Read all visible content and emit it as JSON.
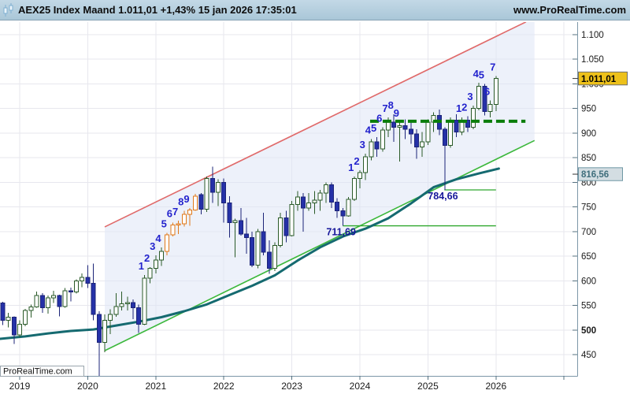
{
  "header": {
    "icon": "candlestick-chart-icon",
    "title": "AEX25 Index Maand 1.011,01 +1,43% 15 jan 2026 17:35:01",
    "website": "www.ProRealTime.com"
  },
  "watermark": "ProRealTime.com",
  "price_axis": {
    "ticks": [
      {
        "value": 1100,
        "label": "1.100"
      },
      {
        "value": 1050,
        "label": "1.050"
      },
      {
        "value": 1000,
        "label": "1.000"
      },
      {
        "value": 950,
        "label": "950"
      },
      {
        "value": 900,
        "label": "900"
      },
      {
        "value": 850,
        "label": "850"
      },
      {
        "value": 800,
        "label": "800"
      },
      {
        "value": 750,
        "label": "750"
      },
      {
        "value": 700,
        "label": "700"
      },
      {
        "value": 650,
        "label": "650"
      },
      {
        "value": 600,
        "label": "600"
      },
      {
        "value": 550,
        "label": "550"
      },
      {
        "value": 500,
        "label": "500",
        "bold": true
      },
      {
        "value": 450,
        "label": "450"
      }
    ],
    "tags": [
      {
        "name": "last-price-tag",
        "text": "1.011,01",
        "value": 1011.01,
        "bg": "#edc11a",
        "border": "#6d6d6d",
        "color": "#000000"
      },
      {
        "name": "ma-value-tag",
        "text": "816,56",
        "value": 816.56,
        "bg": "#d3dde2",
        "border": "#6e97a4",
        "color": "#3f6e7c"
      }
    ]
  },
  "time_axis": {
    "years": [
      "2019",
      "2020",
      "2021",
      "2022",
      "2023",
      "2024",
      "2025",
      "2026"
    ]
  },
  "chart_data": {
    "type": "candlestick",
    "instrument": "AEX25 Index",
    "timeframe": "Maand",
    "last": "1.011,01",
    "change": "+1,43%",
    "timestamp": "15 jan 2026 17:35:01",
    "ylim": [
      450,
      1100
    ],
    "xlim_years": [
      2019,
      2026
    ],
    "grid": true,
    "start_month": "2018-10",
    "candles": [
      [
        "2018-10",
        555,
        557,
        510,
        520,
        "dn"
      ],
      [
        "2018-11",
        520,
        535,
        505,
        526,
        "up"
      ],
      [
        "2018-12",
        526,
        528,
        472,
        490,
        "dn"
      ],
      [
        "2019-01",
        490,
        520,
        485,
        512,
        "up"
      ],
      [
        "2019-02",
        512,
        543,
        508,
        540,
        "up"
      ],
      [
        "2019-03",
        540,
        552,
        525,
        547,
        "up"
      ],
      [
        "2019-04",
        547,
        578,
        545,
        570,
        "up"
      ],
      [
        "2019-05",
        570,
        575,
        535,
        545,
        "dn"
      ],
      [
        "2019-06",
        545,
        570,
        533,
        565,
        "up"
      ],
      [
        "2019-07",
        565,
        580,
        555,
        570,
        "up"
      ],
      [
        "2019-08",
        570,
        572,
        528,
        548,
        "dn"
      ],
      [
        "2019-09",
        548,
        585,
        545,
        580,
        "up"
      ],
      [
        "2019-10",
        580,
        586,
        558,
        577,
        "dn"
      ],
      [
        "2019-11",
        577,
        603,
        574,
        600,
        "up"
      ],
      [
        "2019-12",
        600,
        615,
        587,
        607,
        "up"
      ],
      [
        "2020-01",
        607,
        632,
        585,
        595,
        "dn"
      ],
      [
        "2020-02",
        595,
        635,
        520,
        532,
        "dn"
      ],
      [
        "2020-03",
        532,
        538,
        405,
        475,
        "dn"
      ],
      [
        "2020-04",
        475,
        532,
        455,
        520,
        "up"
      ],
      [
        "2020-05",
        520,
        542,
        492,
        532,
        "up"
      ],
      [
        "2020-06",
        532,
        575,
        527,
        548,
        "up"
      ],
      [
        "2020-07",
        548,
        578,
        540,
        553,
        "up"
      ],
      [
        "2020-08",
        553,
        568,
        540,
        556,
        "up"
      ],
      [
        "2020-09",
        556,
        562,
        522,
        545,
        "dn"
      ],
      [
        "2020-10",
        545,
        552,
        494,
        512,
        "dn"
      ],
      [
        "2020-11",
        512,
        612,
        510,
        605,
        "up"
      ],
      [
        "2020-12",
        605,
        628,
        595,
        625,
        "up"
      ],
      [
        "2021-01",
        625,
        652,
        615,
        642,
        "up"
      ],
      [
        "2021-02",
        642,
        668,
        630,
        660,
        "up"
      ],
      [
        "2021-03",
        660,
        697,
        652,
        693,
        "setup"
      ],
      [
        "2021-04",
        693,
        718,
        690,
        713,
        "setup"
      ],
      [
        "2021-05",
        713,
        722,
        695,
        716,
        "setup"
      ],
      [
        "2021-06",
        716,
        742,
        710,
        735,
        "setup"
      ],
      [
        "2021-07",
        735,
        748,
        712,
        744,
        "setup"
      ],
      [
        "2021-08",
        744,
        777,
        742,
        772,
        "setup"
      ],
      [
        "2021-09",
        775,
        778,
        735,
        745,
        "dn"
      ],
      [
        "2021-10",
        745,
        812,
        740,
        808,
        "up"
      ],
      [
        "2021-11",
        808,
        832,
        758,
        780,
        "dn"
      ],
      [
        "2021-12",
        780,
        806,
        752,
        800,
        "up"
      ],
      [
        "2022-01",
        800,
        808,
        718,
        758,
        "dn"
      ],
      [
        "2022-02",
        758,
        772,
        688,
        718,
        "dn"
      ],
      [
        "2022-03",
        718,
        726,
        648,
        722,
        "up"
      ],
      [
        "2022-04",
        722,
        748,
        692,
        695,
        "dn"
      ],
      [
        "2022-05",
        695,
        728,
        655,
        688,
        "dn"
      ],
      [
        "2022-06",
        688,
        700,
        628,
        632,
        "dn"
      ],
      [
        "2022-07",
        632,
        705,
        625,
        700,
        "up"
      ],
      [
        "2022-08",
        700,
        738,
        652,
        658,
        "dn"
      ],
      [
        "2022-09",
        658,
        682,
        614,
        625,
        "dn"
      ],
      [
        "2022-10",
        625,
        678,
        620,
        672,
        "up"
      ],
      [
        "2022-11",
        672,
        738,
        668,
        728,
        "up"
      ],
      [
        "2022-12",
        728,
        742,
        678,
        692,
        "dn"
      ],
      [
        "2023-01",
        692,
        762,
        690,
        755,
        "up"
      ],
      [
        "2023-02",
        755,
        782,
        742,
        770,
        "up"
      ],
      [
        "2023-03",
        770,
        778,
        700,
        748,
        "dn"
      ],
      [
        "2023-04",
        748,
        778,
        742,
        758,
        "up"
      ],
      [
        "2023-05",
        758,
        782,
        736,
        764,
        "up"
      ],
      [
        "2023-06",
        764,
        785,
        742,
        778,
        "up"
      ],
      [
        "2023-07",
        778,
        800,
        758,
        795,
        "up"
      ],
      [
        "2023-08",
        795,
        800,
        748,
        760,
        "dn"
      ],
      [
        "2023-09",
        760,
        768,
        728,
        742,
        "dn"
      ],
      [
        "2023-10",
        742,
        748,
        711.69,
        732,
        "dn"
      ],
      [
        "2023-11",
        732,
        770,
        730,
        765,
        "up"
      ],
      [
        "2023-12",
        765,
        812,
        762,
        808,
        "up"
      ],
      [
        "2024-01",
        808,
        825,
        788,
        820,
        "up"
      ],
      [
        "2024-02",
        820,
        858,
        805,
        852,
        "up"
      ],
      [
        "2024-03",
        852,
        888,
        845,
        882,
        "up"
      ],
      [
        "2024-04",
        882,
        892,
        852,
        868,
        "dn"
      ],
      [
        "2024-05",
        868,
        912,
        862,
        906,
        "up"
      ],
      [
        "2024-06",
        906,
        932,
        892,
        922,
        "up"
      ],
      [
        "2024-07",
        922,
        938,
        882,
        912,
        "dn"
      ],
      [
        "2024-08",
        912,
        922,
        842,
        915,
        "up"
      ],
      [
        "2024-09",
        915,
        928,
        888,
        908,
        "dn"
      ],
      [
        "2024-10",
        908,
        926,
        878,
        898,
        "dn"
      ],
      [
        "2024-11",
        898,
        908,
        848,
        872,
        "dn"
      ],
      [
        "2024-12",
        872,
        902,
        852,
        882,
        "up"
      ],
      [
        "2025-01",
        882,
        928,
        876,
        922,
        "up"
      ],
      [
        "2025-02",
        922,
        942,
        902,
        936,
        "up"
      ],
      [
        "2025-03",
        936,
        948,
        896,
        908,
        "dn"
      ],
      [
        "2025-04",
        908,
        912,
        784.66,
        875,
        "dn"
      ],
      [
        "2025-05",
        875,
        932,
        870,
        926,
        "up"
      ],
      [
        "2025-06",
        926,
        938,
        892,
        902,
        "dn"
      ],
      [
        "2025-07",
        902,
        932,
        896,
        926,
        "up"
      ],
      [
        "2025-08",
        926,
        934,
        902,
        912,
        "dn"
      ],
      [
        "2025-09",
        912,
        956,
        908,
        950,
        "up"
      ],
      [
        "2025-10",
        950,
        1002,
        946,
        995,
        "up"
      ],
      [
        "2025-11",
        995,
        1000,
        936,
        944,
        "dn"
      ],
      [
        "2025-12",
        944,
        966,
        932,
        958,
        "up"
      ],
      [
        "2026-01",
        958,
        1016,
        945,
        1011.01,
        "up"
      ]
    ],
    "candle_colors": {
      "up": {
        "stroke": "#2a5a28",
        "fill": "#ffffff"
      },
      "dn": {
        "stroke": "#1c2478",
        "fill": "#2531a8"
      },
      "setup": {
        "stroke": "#e07818",
        "fill": "#ffffff"
      }
    },
    "moving_average": {
      "name": "long-term-moving-average",
      "color": "#156a70",
      "value_tag": "816,56",
      "points": [
        [
          -0.5,
          482
        ],
        [
          4,
          487
        ],
        [
          8,
          493
        ],
        [
          12,
          498
        ],
        [
          16,
          501
        ],
        [
          20,
          509
        ],
        [
          24,
          517
        ],
        [
          28,
          526
        ],
        [
          32,
          538
        ],
        [
          36,
          552
        ],
        [
          40,
          571
        ],
        [
          44,
          590
        ],
        [
          48,
          611
        ],
        [
          52,
          641
        ],
        [
          56,
          668
        ],
        [
          60,
          690
        ],
        [
          64,
          706
        ],
        [
          68,
          727
        ],
        [
          72,
          757
        ],
        [
          76,
          790
        ],
        [
          80,
          806
        ],
        [
          84,
          818
        ],
        [
          87.5,
          828
        ]
      ]
    },
    "channel": {
      "fill": "#dfe5f6",
      "fill_opacity": 0.55,
      "upper": {
        "color": "#e06a6a",
        "from": [
          18,
          709.5
        ],
        "to": [
          92.3,
          1126
        ]
      },
      "lower": {
        "color": "#3cb83c",
        "from": [
          18,
          458
        ],
        "to": [
          93.8,
          885
        ]
      }
    },
    "resistance_dashed": {
      "price": 924,
      "from_month": 64.8,
      "to_month": 92.2,
      "color": "#0a7d0a"
    },
    "support_lines": [
      {
        "price": 711.69,
        "from_month": 60,
        "to_month": 87,
        "label": "711,69",
        "color": "#2fa82d"
      },
      {
        "price": 784.66,
        "from_month": 77.9,
        "to_month": 87,
        "label": "784,66",
        "color": "#2fa82d"
      }
    ],
    "count_annotations": [
      {
        "start_month_index": 25,
        "labels": [
          "1",
          "2",
          "3",
          "4",
          "5",
          "6",
          "7",
          "8",
          "9"
        ],
        "color": "#2323cd"
      },
      {
        "start_month_index": 62,
        "labels": [
          "1",
          "2",
          "3",
          "4",
          "5",
          "6",
          "7",
          "8",
          "9"
        ],
        "color": "#2323cd"
      },
      {
        "start_month_index": 81,
        "labels": [
          "1",
          "2",
          "3",
          "4",
          "5",
          "6",
          "7"
        ],
        "color": "#2323cd"
      }
    ]
  }
}
